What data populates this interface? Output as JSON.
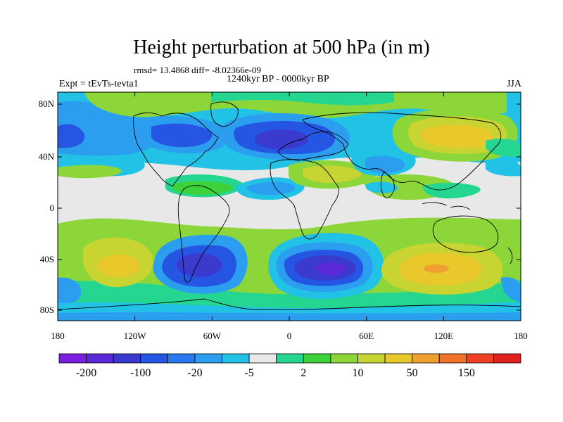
{
  "title": "Height perturbation at 500 hPa (in m)",
  "stats_text": "rmsd= 13.4868 diff= -8.02366e-09",
  "experiment_label": "Expt = tEvTs-tevta1",
  "period_label": "1240kyr BP - 0000kyr BP",
  "season_label": "JJA",
  "axes": {
    "y_ticks": [
      "80N",
      "40N",
      "0",
      "40S",
      "80S"
    ],
    "x_ticks": [
      "180",
      "120W",
      "60W",
      "0",
      "60E",
      "120E",
      "180"
    ]
  },
  "colorbar": {
    "colors": [
      "#7a1ee0",
      "#5a2ad8",
      "#3a3acf",
      "#2456e3",
      "#2a78f0",
      "#2c9ef0",
      "#22c2e6",
      "#e8e8e8",
      "#24d690",
      "#3ed23a",
      "#8cd63a",
      "#c8d432",
      "#e8c82a",
      "#f0a030",
      "#f07228",
      "#f04024",
      "#e0201c"
    ],
    "labels": [
      "-200",
      "-100",
      "-20",
      "-5",
      "2",
      "10",
      "50",
      "150"
    ]
  },
  "colors": {
    "neutral": "#e8e8e8",
    "deep_negative": "#3a3acf",
    "medium_negative": "#2456e3",
    "light_negative": "#2a78f0",
    "cyan_negative": "#22c2e6",
    "teal_positive": "#24d690",
    "green_positive": "#3ed23a",
    "yellowgreen_positive": "#8cd63a",
    "yellow_positive": "#c8d432",
    "orange_positive": "#e8c82a",
    "coast": "#000000"
  }
}
